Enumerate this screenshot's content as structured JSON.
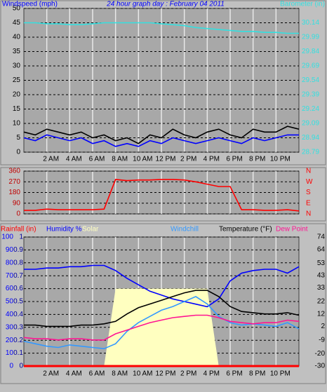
{
  "chart_data": [
    {
      "type": "line",
      "title": "24 hour graph day : February 04 2011",
      "x": [
        0,
        1,
        2,
        3,
        4,
        5,
        6,
        7,
        8,
        9,
        10,
        11,
        12,
        13,
        14,
        15,
        16,
        17,
        18,
        19,
        20,
        21,
        22,
        23,
        24
      ],
      "xlim": [
        0,
        24
      ],
      "xticks": [
        {
          "value": 2,
          "label": "2 AM"
        },
        {
          "value": 4,
          "label": "4 AM"
        },
        {
          "value": 6,
          "label": "6 AM"
        },
        {
          "value": 8,
          "label": "8 AM"
        },
        {
          "value": 10,
          "label": "10 AM"
        },
        {
          "value": 12,
          "label": "12 PM"
        },
        {
          "value": 14,
          "label": "2 PM"
        },
        {
          "value": 16,
          "label": "4 PM"
        },
        {
          "value": 18,
          "label": "6 PM"
        },
        {
          "value": 20,
          "label": "8 PM"
        },
        {
          "value": 22,
          "label": "10 PM"
        }
      ],
      "ylim": [
        0,
        50
      ],
      "yticks": [
        0,
        5,
        10,
        15,
        20,
        25,
        30,
        35,
        40,
        45,
        50
      ],
      "y2lim": [
        28.79,
        30.29
      ],
      "y2ticks": [
        28.79,
        28.94,
        29.09,
        29.24,
        29.39,
        29.54,
        29.69,
        29.84,
        29.99,
        30.14
      ],
      "grid": true,
      "series": [
        {
          "name": "Windspeed (mph)",
          "color": "#0000ff",
          "values": [
            5,
            4,
            6,
            5,
            4,
            5,
            3,
            4,
            2,
            3,
            2,
            4,
            3,
            5,
            4,
            3,
            4,
            5,
            4,
            3,
            5,
            4,
            5,
            6,
            6
          ]
        },
        {
          "color": "#000000",
          "values": [
            7,
            6,
            8,
            7,
            6,
            7,
            5,
            6,
            4,
            5,
            3,
            6,
            5,
            8,
            6,
            5,
            7,
            8,
            6,
            5,
            8,
            7,
            7,
            9,
            8
          ]
        },
        {
          "name": "Barometer (in)",
          "color": "#33e0e0",
          "axis": "y2",
          "values": [
            30.14,
            30.14,
            30.13,
            30.13,
            30.12,
            30.12,
            30.13,
            30.14,
            30.14,
            30.14,
            30.14,
            30.14,
            30.13,
            30.12,
            30.11,
            30.09,
            30.08,
            30.07,
            30.06,
            30.05,
            30.05,
            30.04,
            30.04,
            30.03,
            30.03
          ]
        }
      ]
    },
    {
      "type": "line",
      "x": [
        0,
        1,
        2,
        3,
        4,
        5,
        6,
        7,
        8,
        9,
        10,
        11,
        12,
        13,
        14,
        15,
        16,
        17,
        18,
        19,
        20,
        21,
        22,
        23,
        24
      ],
      "xlim": [
        0,
        24
      ],
      "xticks": [
        2,
        4,
        6,
        8,
        10,
        12,
        14,
        16,
        18,
        20,
        22
      ],
      "ylim": [
        0,
        360
      ],
      "yticks": [
        0,
        90,
        180,
        270,
        360
      ],
      "y2lim": [
        0,
        360
      ],
      "y2ticks": [
        {
          "value": 0,
          "label": "N"
        },
        {
          "value": 90,
          "label": "E"
        },
        {
          "value": 180,
          "label": "S"
        },
        {
          "value": 270,
          "label": "W"
        },
        {
          "value": 360,
          "label": "N"
        }
      ],
      "grid": true,
      "series": [
        {
          "color": "#ff0000",
          "values": [
            30,
            30,
            40,
            35,
            35,
            35,
            35,
            40,
            290,
            280,
            285,
            285,
            290,
            290,
            285,
            270,
            250,
            230,
            230,
            35,
            35,
            30,
            30,
            35,
            25
          ]
        }
      ]
    },
    {
      "type": "line",
      "x": [
        0,
        1,
        2,
        3,
        4,
        5,
        6,
        7,
        8,
        9,
        10,
        11,
        12,
        13,
        14,
        15,
        16,
        17,
        18,
        19,
        20,
        21,
        22,
        23,
        24
      ],
      "xlim": [
        0,
        24
      ],
      "xticks": [
        {
          "value": 2,
          "label": "2 AM"
        },
        {
          "value": 4,
          "label": "4 AM"
        },
        {
          "value": 6,
          "label": "6 AM"
        },
        {
          "value": 8,
          "label": "8 AM"
        },
        {
          "value": 10,
          "label": "10 AM"
        },
        {
          "value": 12,
          "label": "12 PM"
        },
        {
          "value": 14,
          "label": "2 PM"
        },
        {
          "value": 16,
          "label": "4 PM"
        },
        {
          "value": 18,
          "label": "6 PM"
        },
        {
          "value": 20,
          "label": "8 PM"
        },
        {
          "value": 22,
          "label": "10 PM"
        }
      ],
      "ylim": [
        0,
        100
      ],
      "yticks": [
        0,
        10,
        20,
        30,
        40,
        50,
        60,
        70,
        80,
        90,
        100
      ],
      "y3lim": [
        0,
        1
      ],
      "y3ticks": [
        0,
        0.1,
        0.2,
        0.3,
        0.4,
        0.5,
        0.6,
        0.7,
        0.8,
        0.9,
        1
      ],
      "y2lim": [
        -30,
        74
      ],
      "y2ticks": [
        -30,
        -20,
        -9,
        2,
        12,
        22,
        33,
        43,
        53,
        64,
        74
      ],
      "grid": true,
      "series": [
        {
          "name": "Rainfall (in)",
          "color": "#ff0000",
          "axis": "y3",
          "values": [
            0,
            0,
            0,
            0,
            0,
            0,
            0,
            0,
            0,
            0,
            0,
            0,
            0,
            0,
            0,
            0,
            0,
            0,
            0,
            0,
            0,
            0,
            0,
            0,
            0
          ]
        },
        {
          "name": "Humidity %",
          "color": "#0000ff",
          "values": [
            75,
            75,
            76,
            76,
            77,
            77,
            78,
            78,
            74,
            68,
            63,
            58,
            55,
            52,
            50,
            48,
            46,
            52,
            66,
            72,
            74,
            75,
            75,
            72,
            77
          ]
        },
        {
          "name": "Solar",
          "color": "#ffffc0",
          "style": "area",
          "values": [
            0,
            0,
            0,
            0,
            0,
            0,
            0,
            0,
            60,
            60,
            60,
            60,
            60,
            60,
            60,
            60,
            60,
            0,
            0,
            0,
            0,
            0,
            0,
            0,
            0
          ]
        },
        {
          "name": "Windchill",
          "color": "#3399ff",
          "axis": "y2",
          "values": [
            -10,
            -12,
            -14,
            -15,
            -13,
            -14,
            -15,
            -16,
            -12,
            -2,
            5,
            10,
            15,
            18,
            22,
            26,
            20,
            10,
            5,
            3,
            4,
            3,
            2,
            5,
            0
          ]
        },
        {
          "name": "Temperature (°F)",
          "color": "#000000",
          "axis": "y2",
          "values": [
            3,
            3,
            2,
            2,
            2,
            3,
            3,
            4,
            6,
            12,
            17,
            20,
            23,
            26,
            29,
            31,
            31,
            26,
            18,
            14,
            13,
            12,
            12,
            13,
            11
          ]
        },
        {
          "name": "Dew Point",
          "color": "#ff1493",
          "axis": "y2",
          "values": [
            -7,
            -8,
            -8,
            -9,
            -8,
            -8,
            -9,
            -9,
            -4,
            -1,
            2,
            5,
            7,
            9,
            10,
            11,
            11,
            9,
            6,
            5,
            4,
            5,
            5,
            7,
            6
          ]
        }
      ]
    }
  ]
}
